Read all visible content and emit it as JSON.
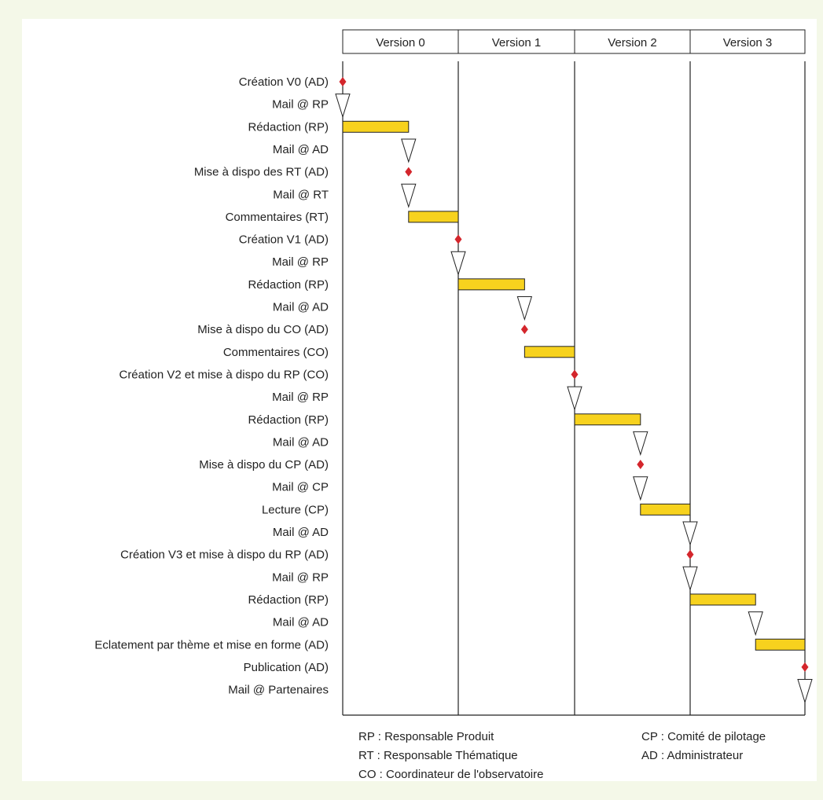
{
  "colors": {
    "background": "#f4f8e8",
    "bar_fill": "#f7d21e",
    "milestone": "#d4262c",
    "line": "#222222"
  },
  "columns": [
    "Version 0",
    "Version 1",
    "Version 2",
    "Version 3"
  ],
  "rows": [
    {
      "label": "Création V0 (AD)",
      "type": "milestone",
      "at": 0
    },
    {
      "label": "Mail @ RP",
      "type": "mail",
      "at": 0
    },
    {
      "label": "Rédaction (RP)",
      "type": "task",
      "start": 0,
      "end": 0.57
    },
    {
      "label": "Mail @ AD",
      "type": "mail",
      "at": 0.57
    },
    {
      "label": "Mise à dispo des RT (AD)",
      "type": "milestone",
      "at": 0.57
    },
    {
      "label": "Mail @ RT",
      "type": "mail",
      "at": 0.57
    },
    {
      "label": "Commentaires (RT)",
      "type": "task",
      "start": 0.57,
      "end": 1
    },
    {
      "label": "Création V1 (AD)",
      "type": "milestone",
      "at": 1
    },
    {
      "label": "Mail @ RP",
      "type": "mail",
      "at": 1
    },
    {
      "label": "Rédaction (RP)",
      "type": "task",
      "start": 1,
      "end": 1.57
    },
    {
      "label": "Mail @ AD",
      "type": "mail",
      "at": 1.57
    },
    {
      "label": "Mise à dispo du CO (AD)",
      "type": "milestone",
      "at": 1.57
    },
    {
      "label": "Commentaires (CO)",
      "type": "task",
      "start": 1.57,
      "end": 2
    },
    {
      "label": "Création V2 et mise à dispo du RP (CO)",
      "type": "milestone",
      "at": 2
    },
    {
      "label": "Mail @ RP",
      "type": "mail",
      "at": 2
    },
    {
      "label": "Rédaction (RP)",
      "type": "task",
      "start": 2,
      "end": 2.57
    },
    {
      "label": "Mail @ AD",
      "type": "mail",
      "at": 2.57
    },
    {
      "label": "Mise à dispo du CP (AD)",
      "type": "milestone",
      "at": 2.57
    },
    {
      "label": "Mail @ CP",
      "type": "mail",
      "at": 2.57
    },
    {
      "label": "Lecture (CP)",
      "type": "task",
      "start": 2.57,
      "end": 3
    },
    {
      "label": "Mail @ AD",
      "type": "mail",
      "at": 3
    },
    {
      "label": "Création V3 et mise à dispo du RP (AD)",
      "type": "milestone",
      "at": 3
    },
    {
      "label": "Mail @ RP",
      "type": "mail",
      "at": 3
    },
    {
      "label": "Rédaction (RP)",
      "type": "task",
      "start": 3,
      "end": 3.57
    },
    {
      "label": "Mail @ AD",
      "type": "mail",
      "at": 3.57
    },
    {
      "label": "Eclatement par thème et mise en forme (AD)",
      "type": "task",
      "start": 3.57,
      "end": 4
    },
    {
      "label": "Publication  (AD)",
      "type": "milestone",
      "at": 4
    },
    {
      "label": "Mail @ Partenaires",
      "type": "mail",
      "at": 4
    }
  ],
  "legend": {
    "rp": "RP : Responsable Produit",
    "rt": "RT : Responsable Thématique",
    "co": "CO : Coordinateur de l'observatoire",
    "cp": "CP : Comité de pilotage",
    "ad": "AD : Administrateur"
  }
}
